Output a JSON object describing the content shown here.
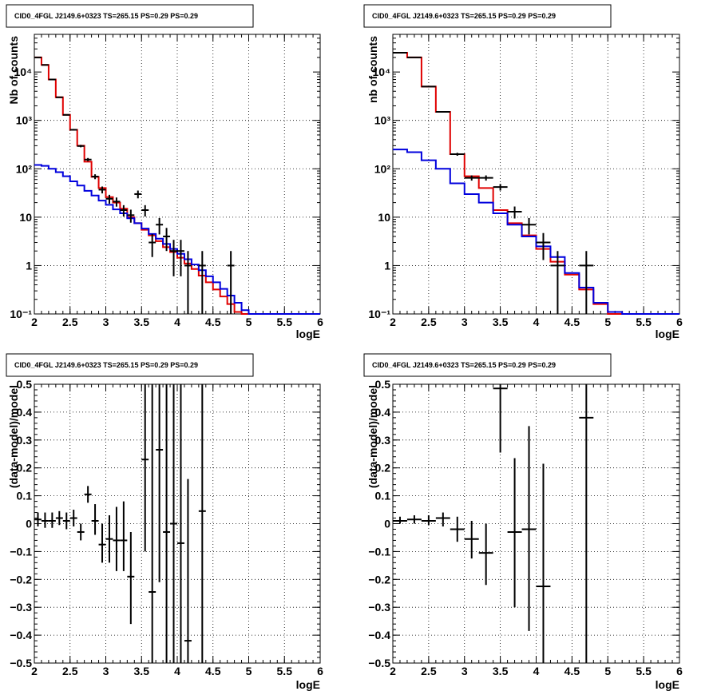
{
  "figure_title": "",
  "chart_data": [
    {
      "type": "line",
      "title": "CID0_4FGL J2149.6+0323 TS=265.15 PS=0.29 PS=0.29",
      "xlabel": "logE",
      "ylabel": "Nb of counts",
      "xlim": [
        2,
        6
      ],
      "ylim": [
        0.1,
        60000
      ],
      "yscale": "log",
      "grid": true,
      "x_ticks": [
        "2",
        "2.5",
        "3",
        "3.5",
        "4",
        "4.5",
        "5",
        "5.5",
        "6"
      ],
      "y_ticks": [
        "10⁻¹",
        "1",
        "10",
        "10²",
        "10³",
        "10⁴"
      ],
      "bin_edges": [
        2.0,
        2.1,
        2.2,
        2.3,
        2.4,
        2.5,
        2.6,
        2.7,
        2.8,
        2.9,
        3.0,
        3.1,
        3.2,
        3.3,
        3.4,
        3.5,
        3.6,
        3.7,
        3.8,
        3.9,
        4.0,
        4.1,
        4.2,
        4.3,
        4.4,
        4.5,
        4.6,
        4.7,
        4.8,
        4.9,
        5.0,
        5.1,
        5.2,
        5.3,
        5.4,
        5.5,
        5.6,
        5.7,
        5.8,
        5.9,
        6.0
      ],
      "series": [
        {
          "color": "#e00000",
          "style": "step",
          "values": [
            20000,
            14000,
            7000,
            3000,
            1300,
            640,
            300,
            140,
            68,
            40,
            26,
            20,
            15,
            10,
            7.5,
            5.5,
            4.2,
            3.2,
            2.4,
            1.9,
            1.45,
            1.1,
            0.85,
            0.62,
            0.45,
            0.32,
            0.23,
            0.16,
            0.11,
            0.1,
            0.1,
            0.1,
            0.1,
            0.1,
            0.1,
            0.1,
            0.1,
            0.1,
            0.1,
            0.1
          ]
        },
        {
          "color": "#0000dd",
          "style": "step",
          "values": [
            120,
            115,
            100,
            85,
            70,
            55,
            45,
            35,
            28,
            22,
            18,
            14.5,
            12,
            9.5,
            7.5,
            5.8,
            4.5,
            3.6,
            2.8,
            2.2,
            1.75,
            1.35,
            1.05,
            0.8,
            0.6,
            0.45,
            0.33,
            0.24,
            0.17,
            0.12,
            0.1,
            0.1,
            0.1,
            0.1,
            0.1,
            0.1,
            0.1,
            0.1,
            0.1,
            0.1
          ]
        },
        {
          "color": "#000000",
          "style": "points",
          "points": [
            {
              "x": 2.05,
              "y": 20000,
              "lo": 19800,
              "hi": 20200
            },
            {
              "x": 2.15,
              "y": 14000,
              "lo": 13850,
              "hi": 14150
            },
            {
              "x": 2.25,
              "y": 7000,
              "lo": 6900,
              "hi": 7100
            },
            {
              "x": 2.35,
              "y": 3000,
              "lo": 2950,
              "hi": 3050
            },
            {
              "x": 2.45,
              "y": 1300,
              "lo": 1270,
              "hi": 1330
            },
            {
              "x": 2.55,
              "y": 640,
              "lo": 615,
              "hi": 665
            },
            {
              "x": 2.65,
              "y": 295,
              "lo": 278,
              "hi": 312
            },
            {
              "x": 2.75,
              "y": 155,
              "lo": 143,
              "hi": 167
            },
            {
              "x": 2.85,
              "y": 69,
              "lo": 61,
              "hi": 77
            },
            {
              "x": 2.95,
              "y": 37,
              "lo": 31,
              "hi": 43
            },
            {
              "x": 3.05,
              "y": 24,
              "lo": 19,
              "hi": 29
            },
            {
              "x": 3.15,
              "y": 21,
              "lo": 16.5,
              "hi": 25.5
            },
            {
              "x": 3.25,
              "y": 14,
              "lo": 10.3,
              "hi": 17.7
            },
            {
              "x": 3.35,
              "y": 11,
              "lo": 7.7,
              "hi": 14.3
            },
            {
              "x": 3.45,
              "y": 30,
              "lo": 24.5,
              "hi": 35.5
            },
            {
              "x": 3.55,
              "y": 14,
              "lo": 10.3,
              "hi": 17.7
            },
            {
              "x": 3.65,
              "y": 3,
              "lo": 1.5,
              "hi": 4.5
            },
            {
              "x": 3.75,
              "y": 7,
              "lo": 4.4,
              "hi": 9.6
            },
            {
              "x": 3.85,
              "y": 4,
              "lo": 2,
              "hi": 6
            },
            {
              "x": 3.95,
              "y": 2,
              "lo": 0.6,
              "hi": 3.4
            },
            {
              "x": 4.05,
              "y": 2,
              "lo": 0.6,
              "hi": 3.4
            },
            {
              "x": 4.15,
              "y": 1,
              "lo": 0.1,
              "hi": 2
            },
            {
              "x": 4.35,
              "y": 1,
              "lo": 0.1,
              "hi": 2
            },
            {
              "x": 4.75,
              "y": 1,
              "lo": 0.1,
              "hi": 2
            }
          ]
        }
      ]
    },
    {
      "type": "line",
      "title": "CID0_4FGL J2149.6+0323 TS=265.15 PS=0.29 PS=0.29",
      "xlabel": "logE",
      "ylabel": "nb of counts",
      "xlim": [
        2,
        6
      ],
      "ylim": [
        0.1,
        60000
      ],
      "yscale": "log",
      "grid": true,
      "x_ticks": [
        "2",
        "2.5",
        "3",
        "3.5",
        "4",
        "4.5",
        "5",
        "5.5",
        "6"
      ],
      "y_ticks": [
        "10⁻¹",
        "1",
        "10",
        "10²",
        "10³",
        "10⁴"
      ],
      "bin_edges": [
        2.0,
        2.2,
        2.4,
        2.6,
        2.8,
        3.0,
        3.2,
        3.4,
        3.6,
        3.8,
        4.0,
        4.2,
        4.4,
        4.6,
        4.8,
        5.0,
        5.2,
        5.4,
        5.6,
        5.8,
        6.0
      ],
      "series": [
        {
          "color": "#e00000",
          "style": "step",
          "values": [
            25000,
            20000,
            5000,
            1500,
            200,
            70,
            40,
            14,
            7.5,
            4.2,
            2.2,
            1.2,
            0.65,
            0.32,
            0.16,
            0.1,
            0.1,
            0.1,
            0.1,
            0.1
          ]
        },
        {
          "color": "#0000dd",
          "style": "step",
          "values": [
            250,
            220,
            150,
            100,
            50,
            30,
            20,
            12,
            7,
            4,
            2.5,
            1.5,
            0.7,
            0.35,
            0.17,
            0.11,
            0.1,
            0.1,
            0.1,
            0.1
          ]
        },
        {
          "color": "#000000",
          "style": "points",
          "points": [
            {
              "x": 2.1,
              "y": 25000,
              "lo": 24800,
              "hi": 25200
            },
            {
              "x": 2.3,
              "y": 20000,
              "lo": 19800,
              "hi": 20200
            },
            {
              "x": 2.5,
              "y": 5000,
              "lo": 4920,
              "hi": 5080
            },
            {
              "x": 2.7,
              "y": 1500,
              "lo": 1460,
              "hi": 1540
            },
            {
              "x": 2.9,
              "y": 200,
              "lo": 186,
              "hi": 214
            },
            {
              "x": 3.1,
              "y": 65,
              "lo": 57,
              "hi": 73
            },
            {
              "x": 3.3,
              "y": 65,
              "lo": 57,
              "hi": 73
            },
            {
              "x": 3.5,
              "y": 42,
              "lo": 35.5,
              "hi": 48.5
            },
            {
              "x": 3.7,
              "y": 13,
              "lo": 9.4,
              "hi": 16.6
            },
            {
              "x": 3.9,
              "y": 7,
              "lo": 4.4,
              "hi": 9.6
            },
            {
              "x": 4.1,
              "y": 3,
              "lo": 1.3,
              "hi": 4.7
            },
            {
              "x": 4.3,
              "y": 1,
              "lo": 0.1,
              "hi": 2
            },
            {
              "x": 4.7,
              "y": 1,
              "lo": 0.1,
              "hi": 2
            }
          ]
        }
      ]
    },
    {
      "type": "scatter",
      "title": "CID0_4FGL J2149.6+0323 TS=265.15 PS=0.29 PS=0.29",
      "xlabel": "logE",
      "ylabel": "(data-model)/model",
      "xlim": [
        2,
        6
      ],
      "ylim": [
        -0.5,
        0.5
      ],
      "grid": true,
      "x_ticks": [
        "2",
        "2.5",
        "3",
        "3.5",
        "4",
        "4.5",
        "5",
        "5.5",
        "6"
      ],
      "y_ticks": [
        "−0.5",
        "−0.4",
        "−0.3",
        "−0.2",
        "−0.1",
        "0",
        "0.1",
        "0.2",
        "0.3",
        "0.4",
        "0.5"
      ],
      "xerr": 0.05,
      "points": [
        {
          "x": 2.05,
          "y": 0.015,
          "lo": -0.01,
          "hi": 0.04
        },
        {
          "x": 2.15,
          "y": 0.01,
          "lo": -0.015,
          "hi": 0.04
        },
        {
          "x": 2.25,
          "y": 0.01,
          "lo": -0.015,
          "hi": 0.04
        },
        {
          "x": 2.35,
          "y": 0.02,
          "lo": -0.005,
          "hi": 0.045
        },
        {
          "x": 2.45,
          "y": 0.01,
          "lo": -0.02,
          "hi": 0.04
        },
        {
          "x": 2.55,
          "y": 0.02,
          "lo": -0.01,
          "hi": 0.05
        },
        {
          "x": 2.65,
          "y": -0.03,
          "lo": -0.06,
          "hi": 0.0
        },
        {
          "x": 2.75,
          "y": 0.105,
          "lo": 0.075,
          "hi": 0.135
        },
        {
          "x": 2.85,
          "y": 0.01,
          "lo": -0.04,
          "hi": 0.07
        },
        {
          "x": 2.95,
          "y": -0.075,
          "lo": -0.14,
          "hi": 0.0
        },
        {
          "x": 3.05,
          "y": -0.055,
          "lo": -0.14,
          "hi": 0.03
        },
        {
          "x": 3.15,
          "y": -0.06,
          "lo": -0.17,
          "hi": 0.06
        },
        {
          "x": 3.25,
          "y": -0.06,
          "lo": -0.17,
          "hi": 0.08
        },
        {
          "x": 3.35,
          "y": -0.19,
          "lo": -0.36,
          "hi": -0.03
        },
        {
          "x": 3.55,
          "y": 0.23,
          "lo": -0.1,
          "hi": 0.5
        },
        {
          "x": 3.65,
          "y": -0.245,
          "lo": -0.5,
          "hi": 0.5
        },
        {
          "x": 3.75,
          "y": 0.265,
          "lo": -0.21,
          "hi": 0.5
        },
        {
          "x": 3.85,
          "y": -0.03,
          "lo": -0.5,
          "hi": 0.5
        },
        {
          "x": 3.95,
          "y": 0.0,
          "lo": -0.5,
          "hi": 0.5
        },
        {
          "x": 4.05,
          "y": -0.07,
          "lo": -0.5,
          "hi": 0.5
        },
        {
          "x": 4.15,
          "y": -0.42,
          "lo": -0.5,
          "hi": 0.16
        },
        {
          "x": 4.35,
          "y": 0.045,
          "lo": -0.5,
          "hi": 0.5
        }
      ]
    },
    {
      "type": "scatter",
      "title": "CID0_4FGL J2149.6+0323 TS=265.15 PS=0.29 PS=0.29",
      "xlabel": "logE",
      "ylabel": "(data-model)/model",
      "xlim": [
        2,
        6
      ],
      "ylim": [
        -0.5,
        0.5
      ],
      "grid": true,
      "x_ticks": [
        "2",
        "2.5",
        "3",
        "3.5",
        "4",
        "4.5",
        "5",
        "5.5",
        "6"
      ],
      "y_ticks": [
        "−0.5",
        "−0.4",
        "−0.3",
        "−0.2",
        "−0.1",
        "0",
        "0.1",
        "0.2",
        "0.3",
        "0.4",
        "0.5"
      ],
      "xerr": 0.1,
      "points": [
        {
          "x": 2.1,
          "y": 0.01,
          "lo": 0.0,
          "hi": 0.025
        },
        {
          "x": 2.3,
          "y": 0.015,
          "lo": 0.0,
          "hi": 0.03
        },
        {
          "x": 2.5,
          "y": 0.01,
          "lo": -0.005,
          "hi": 0.03
        },
        {
          "x": 2.7,
          "y": 0.02,
          "lo": -0.01,
          "hi": 0.04
        },
        {
          "x": 2.9,
          "y": -0.02,
          "lo": -0.065,
          "hi": 0.025
        },
        {
          "x": 3.1,
          "y": -0.055,
          "lo": -0.125,
          "hi": 0.01
        },
        {
          "x": 3.3,
          "y": -0.105,
          "lo": -0.22,
          "hi": 0.0
        },
        {
          "x": 3.5,
          "y": 0.485,
          "lo": 0.255,
          "hi": 0.5
        },
        {
          "x": 3.7,
          "y": -0.03,
          "lo": -0.3,
          "hi": 0.235
        },
        {
          "x": 3.9,
          "y": -0.02,
          "lo": -0.385,
          "hi": 0.35
        },
        {
          "x": 4.1,
          "y": -0.225,
          "lo": -0.5,
          "hi": 0.215
        },
        {
          "x": 4.7,
          "y": 0.38,
          "lo": -0.5,
          "hi": 0.5
        }
      ]
    }
  ]
}
